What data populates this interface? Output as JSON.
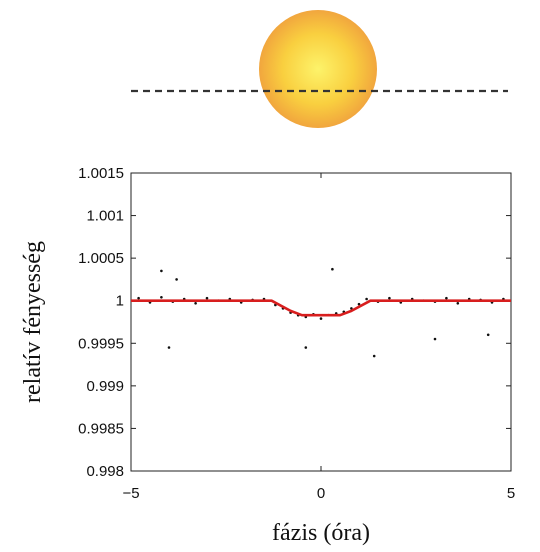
{
  "chart_data": {
    "type": "scatter",
    "title": "",
    "xlabel": "fázis (óra)",
    "ylabel": "relatív fényesség",
    "xlim": [
      -5,
      5
    ],
    "ylim": [
      0.998,
      1.0015
    ],
    "x_ticks": [
      -5,
      0,
      5
    ],
    "x_tick_labels": [
      "−5",
      "0",
      "5"
    ],
    "y_ticks": [
      0.998,
      0.9985,
      0.999,
      0.9995,
      1,
      1.0005,
      1.001,
      1.0015
    ],
    "y_tick_labels": [
      "0.998",
      "0.9985",
      "0.999",
      "0.9995",
      "1",
      "1.0005",
      "1.001",
      "1.0015"
    ],
    "grid": false,
    "legend": "none",
    "series": [
      {
        "kind": "scatter",
        "color": "#111111",
        "x": [
          -4.8,
          -4.5,
          -4.2,
          -3.9,
          -3.6,
          -3.3,
          -3.0,
          -2.7,
          -2.4,
          -2.1,
          -1.8,
          -1.5,
          -1.2,
          -1.0,
          -0.8,
          -0.6,
          -0.4,
          -0.2,
          0.0,
          0.2,
          0.4,
          0.6,
          0.8,
          1.0,
          1.2,
          1.5,
          1.8,
          2.1,
          2.4,
          2.7,
          3.0,
          3.3,
          3.6,
          3.9,
          4.2,
          4.5,
          4.8,
          -4.2,
          -4.0,
          -3.8,
          0.3,
          -0.4,
          1.4,
          3.0,
          4.4
        ],
        "y": [
          1.00003,
          0.99998,
          1.00004,
          0.99999,
          1.00002,
          0.99997,
          1.00003,
          1.0,
          1.00002,
          0.99998,
          1.00001,
          1.00002,
          0.99995,
          0.99991,
          0.99986,
          0.99983,
          0.99981,
          0.99984,
          0.99979,
          0.99983,
          0.99985,
          0.99987,
          0.99991,
          0.99996,
          1.00002,
          0.99999,
          1.00003,
          0.99998,
          1.00002,
          1.0,
          0.99999,
          1.00003,
          0.99997,
          1.00002,
          1.00001,
          0.99998,
          1.00002,
          1.00035,
          0.99945,
          1.00025,
          1.00037,
          0.99945,
          0.99935,
          0.99955,
          0.9996
        ]
      },
      {
        "kind": "line",
        "color": "#d81e1e",
        "x": [
          -5,
          -1.3,
          -0.8,
          -0.5,
          0.5,
          0.8,
          1.3,
          5
        ],
        "y": [
          1.0,
          1.0,
          0.99988,
          0.99983,
          0.99983,
          0.99988,
          1.0,
          1.0
        ]
      }
    ]
  },
  "illustration": {
    "star_color": "#f6c23a",
    "path_color": "#333333"
  }
}
